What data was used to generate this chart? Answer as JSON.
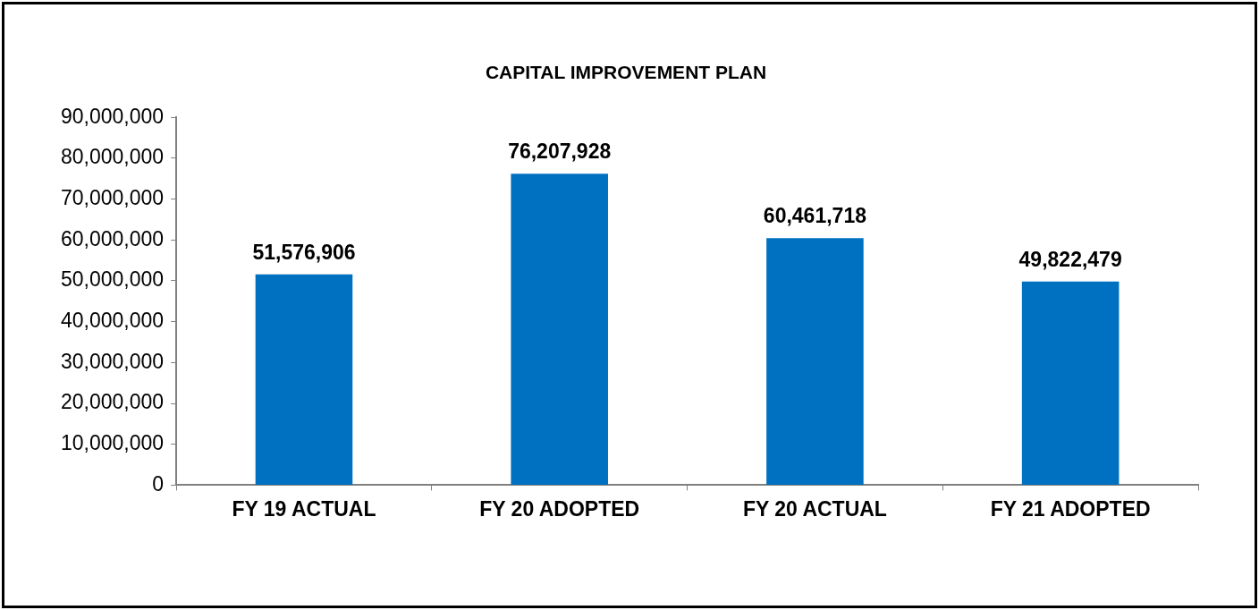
{
  "chart_data": {
    "type": "bar",
    "title": "CAPITAL IMPROVEMENT PLAN",
    "categories": [
      "FY 19 ACTUAL",
      "FY 20 ADOPTED",
      "FY 20 ACTUAL",
      "FY 21 ADOPTED"
    ],
    "values": [
      51576906,
      76207928,
      60461718,
      49822479
    ],
    "color": "#0070c0",
    "value_labels": [
      "51,576,906",
      "76,207,928",
      "60,461,718",
      "49,822,479"
    ],
    "ylim": [
      0,
      90000000
    ],
    "yticks": [
      0,
      {
        "value": 10000000,
        "label": "10,000,000"
      },
      {
        "value": 20000000,
        "label": "20,000,000"
      },
      {
        "value": 30000000,
        "label": "30,000,000"
      },
      {
        "value": 40000000,
        "label": "40,000,000"
      },
      {
        "value": 50000000,
        "label": "50,000,000"
      },
      {
        "value": 60000000,
        "label": "60,000,000"
      },
      {
        "value": 70000000,
        "label": "70,000,000"
      },
      {
        "value": 80000000,
        "label": "80,000,000"
      },
      {
        "value": 90000000,
        "label": "90,000,000"
      }
    ],
    "grid": false,
    "legend": false
  }
}
